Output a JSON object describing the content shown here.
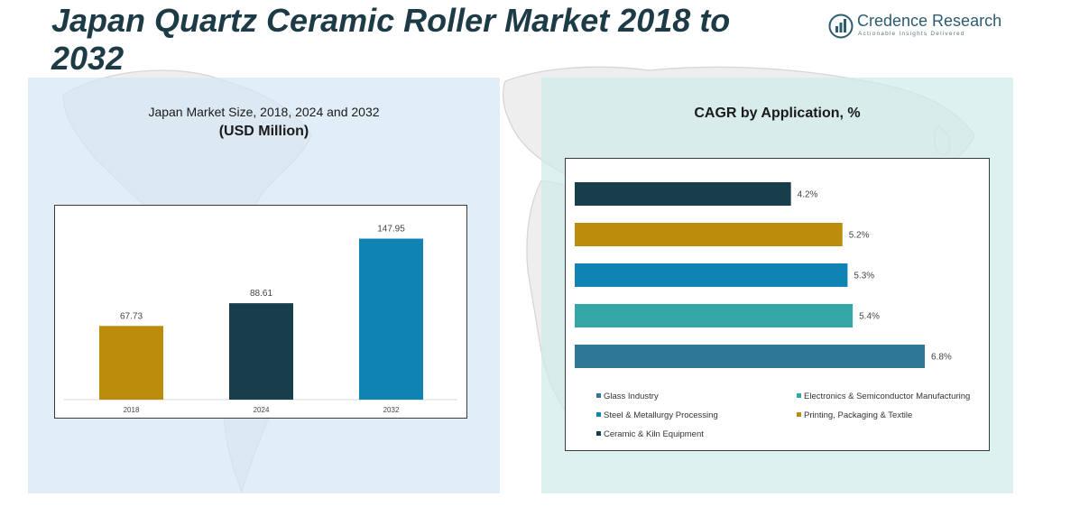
{
  "header": {
    "title": "Japan Quartz Ceramic Roller Market 2018 to 2032",
    "logo_name": "Credence Research",
    "logo_tagline": "Actionable Insights Delivered"
  },
  "left_panel": {
    "title": "Japan Market Size, 2018, 2024 and 2032",
    "unit": "(USD Million)"
  },
  "right_panel": {
    "title": "CAGR by Application, %"
  },
  "chart_data": [
    {
      "type": "bar",
      "title": "Japan Market Size, 2018, 2024 and 2032",
      "subtitle": "(USD Million)",
      "categories": [
        "2018",
        "2024",
        "2032"
      ],
      "values": [
        67.73,
        88.61,
        147.95
      ],
      "value_labels": [
        "67.73",
        "88.61",
        "147.95"
      ],
      "colors": [
        "#bb8d0b",
        "#183d4b",
        "#0f83b3"
      ],
      "ylim": [
        0,
        160
      ],
      "grid": false
    },
    {
      "type": "bar",
      "orientation": "horizontal",
      "title": "CAGR by Application, %",
      "categories": [
        "Ceramic & Kiln Equipment",
        "Printing, Packaging & Textile",
        "Steel & Metallurgy Processing",
        "Electronics & Semiconductor Manufacturing",
        "Glass Industry"
      ],
      "values": [
        4.2,
        5.2,
        5.3,
        5.4,
        6.8
      ],
      "value_labels": [
        "4.2%",
        "5.2%",
        "5.3%",
        "5.4%",
        "6.8%"
      ],
      "colors": [
        "#183d4b",
        "#bb8d0b",
        "#0f83b3",
        "#33a7a5",
        "#2e7895"
      ],
      "xlim": [
        0,
        7
      ],
      "grid": false,
      "legend_position": "bottom",
      "legend": [
        {
          "label": "Glass Industry",
          "color": "#2e7895"
        },
        {
          "label": "Electronics & Semiconductor Manufacturing",
          "color": "#33a7a5"
        },
        {
          "label": "Steel & Metallurgy Processing",
          "color": "#0f83b3"
        },
        {
          "label": "Printing, Packaging & Textile",
          "color": "#bb8d0b"
        },
        {
          "label": "Ceramic & Kiln Equipment",
          "color": "#183d4b"
        }
      ]
    }
  ]
}
